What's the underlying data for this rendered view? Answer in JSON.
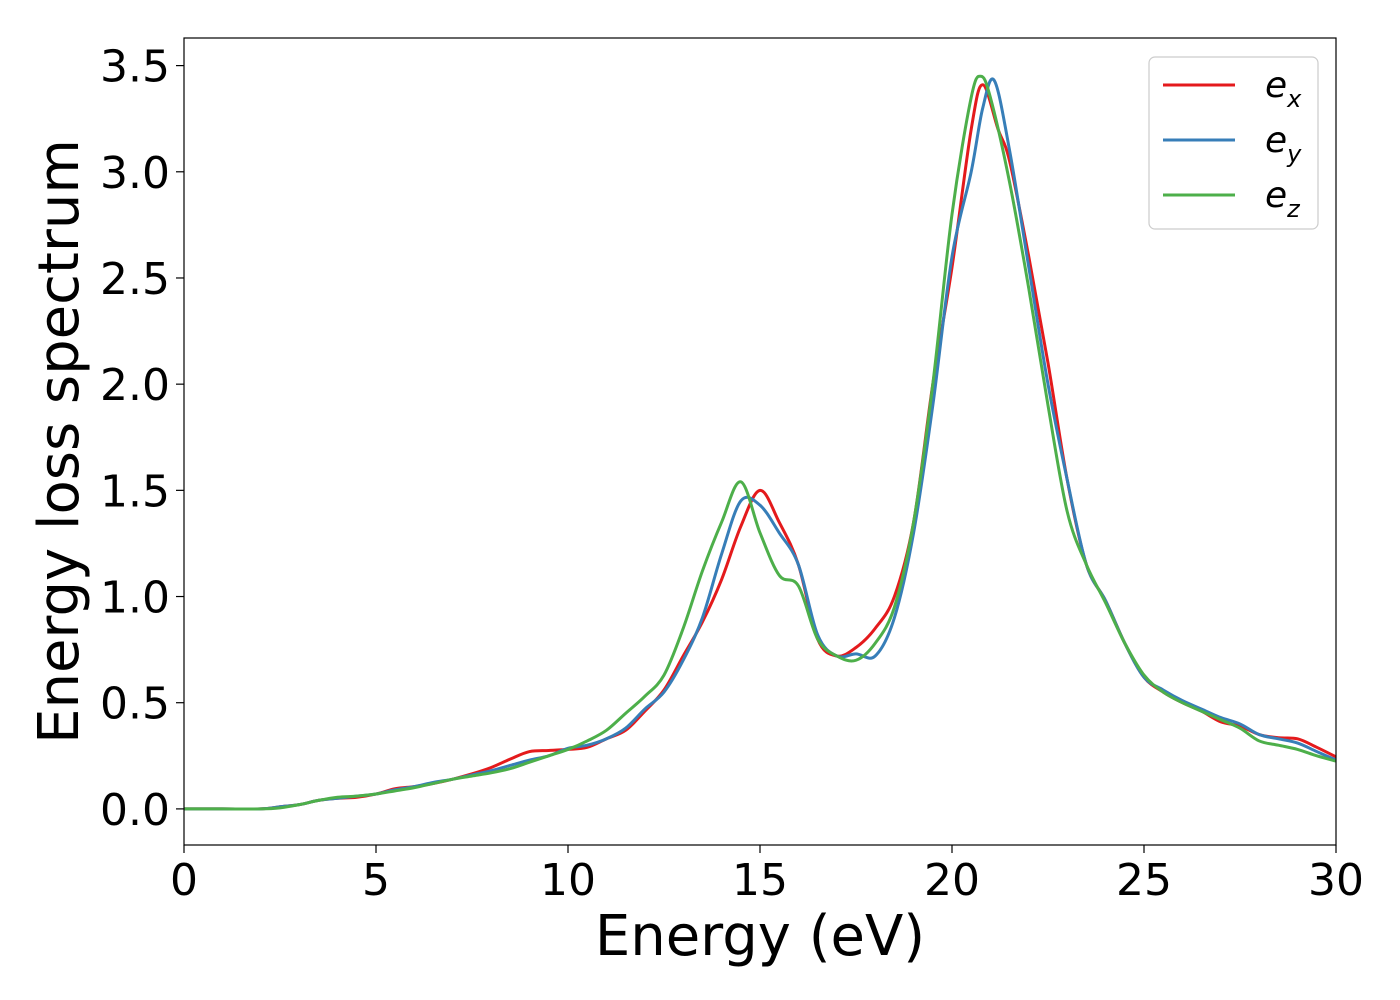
{
  "chart_data": {
    "type": "line",
    "title": "",
    "xlabel": "Energy (eV)",
    "ylabel": "Energy loss spectrum",
    "xlim": [
      0,
      30
    ],
    "ylim": [
      -0.17,
      3.63
    ],
    "xticks": [
      "0",
      "5",
      "10",
      "15",
      "20",
      "25",
      "30"
    ],
    "yticks": [
      "0.0",
      "0.5",
      "1.0",
      "1.5",
      "2.0",
      "2.5",
      "3.0",
      "3.5"
    ],
    "grid": false,
    "legend_position": "top-right",
    "series": [
      {
        "name": "e_x",
        "label_base": "e",
        "label_sub": "x",
        "color": "#e41a1c",
        "x": [
          0,
          1,
          2,
          2.5,
          3,
          3.5,
          4,
          4.5,
          5,
          5.5,
          6,
          6.5,
          7,
          7.5,
          8,
          8.5,
          9,
          9.5,
          10,
          10.5,
          11,
          11.5,
          12,
          12.5,
          13,
          13.5,
          14,
          14.5,
          15,
          15.5,
          16,
          16.5,
          17,
          17.5,
          18,
          18.5,
          19,
          19.5,
          20,
          20.5,
          20.8,
          21.2,
          21.5,
          22,
          22.5,
          23,
          23.5,
          24,
          24.5,
          25,
          25.5,
          26,
          26.5,
          27,
          27.5,
          28,
          28.5,
          29,
          29.5,
          30
        ],
        "y": [
          0,
          0,
          0,
          0.01,
          0.02,
          0.04,
          0.05,
          0.055,
          0.07,
          0.095,
          0.105,
          0.12,
          0.14,
          0.165,
          0.195,
          0.235,
          0.27,
          0.275,
          0.28,
          0.29,
          0.33,
          0.37,
          0.46,
          0.56,
          0.72,
          0.88,
          1.08,
          1.33,
          1.5,
          1.35,
          1.15,
          0.8,
          0.72,
          0.76,
          0.85,
          1.0,
          1.35,
          2.0,
          2.55,
          3.2,
          3.41,
          3.2,
          3.05,
          2.6,
          2.1,
          1.55,
          1.15,
          0.98,
          0.78,
          0.62,
          0.55,
          0.5,
          0.46,
          0.41,
          0.39,
          0.35,
          0.335,
          0.33,
          0.29,
          0.245
        ]
      },
      {
        "name": "e_y",
        "label_base": "e",
        "label_sub": "y",
        "color": "#377eb8",
        "x": [
          0,
          1,
          2,
          2.5,
          3,
          3.5,
          4,
          4.5,
          5,
          5.5,
          6,
          6.5,
          7,
          7.5,
          8,
          8.5,
          9,
          9.5,
          10,
          10.5,
          11,
          11.5,
          12,
          12.5,
          13,
          13.5,
          14,
          14.5,
          15,
          15.5,
          16,
          16.5,
          17,
          17.5,
          18,
          18.5,
          19,
          19.5,
          20,
          20.5,
          20.8,
          21.1,
          21.5,
          22,
          22.5,
          23,
          23.5,
          24,
          24.5,
          25,
          25.5,
          26,
          26.5,
          27,
          27.5,
          28,
          28.5,
          29,
          29.5,
          30
        ],
        "y": [
          0,
          0,
          0,
          0.01,
          0.02,
          0.04,
          0.05,
          0.06,
          0.07,
          0.09,
          0.105,
          0.125,
          0.14,
          0.16,
          0.18,
          0.205,
          0.23,
          0.25,
          0.285,
          0.3,
          0.33,
          0.38,
          0.47,
          0.55,
          0.7,
          0.9,
          1.2,
          1.45,
          1.43,
          1.3,
          1.15,
          0.82,
          0.72,
          0.73,
          0.72,
          0.9,
          1.3,
          1.9,
          2.6,
          3.0,
          3.3,
          3.43,
          3.1,
          2.55,
          2.0,
          1.55,
          1.15,
          0.98,
          0.78,
          0.62,
          0.56,
          0.51,
          0.47,
          0.43,
          0.4,
          0.35,
          0.33,
          0.31,
          0.27,
          0.23
        ]
      },
      {
        "name": "e_z",
        "label_base": "e",
        "label_sub": "z",
        "color": "#4daf4a",
        "x": [
          0,
          1,
          2,
          2.5,
          3,
          3.5,
          4,
          4.5,
          5,
          5.5,
          6,
          6.5,
          7,
          7.5,
          8,
          8.5,
          9,
          9.5,
          10,
          10.5,
          11,
          11.5,
          12,
          12.5,
          13,
          13.5,
          14,
          14.5,
          15,
          15.5,
          16,
          16.5,
          17,
          17.5,
          18,
          18.5,
          19,
          19.5,
          20,
          20.5,
          20.75,
          21,
          21.5,
          22,
          22.5,
          23,
          23.5,
          24,
          24.5,
          25,
          25.5,
          26,
          26.5,
          27,
          27.5,
          28,
          28.5,
          29,
          29.5,
          30
        ],
        "y": [
          0,
          0,
          0,
          0.005,
          0.02,
          0.04,
          0.055,
          0.06,
          0.07,
          0.085,
          0.1,
          0.12,
          0.14,
          0.155,
          0.17,
          0.19,
          0.22,
          0.25,
          0.28,
          0.32,
          0.37,
          0.45,
          0.53,
          0.63,
          0.85,
          1.12,
          1.35,
          1.54,
          1.3,
          1.1,
          1.05,
          0.8,
          0.72,
          0.7,
          0.78,
          0.95,
          1.35,
          2.0,
          2.8,
          3.35,
          3.45,
          3.35,
          2.95,
          2.45,
          1.9,
          1.4,
          1.15,
          0.97,
          0.78,
          0.63,
          0.55,
          0.5,
          0.46,
          0.42,
          0.38,
          0.32,
          0.3,
          0.28,
          0.25,
          0.225
        ]
      }
    ]
  }
}
